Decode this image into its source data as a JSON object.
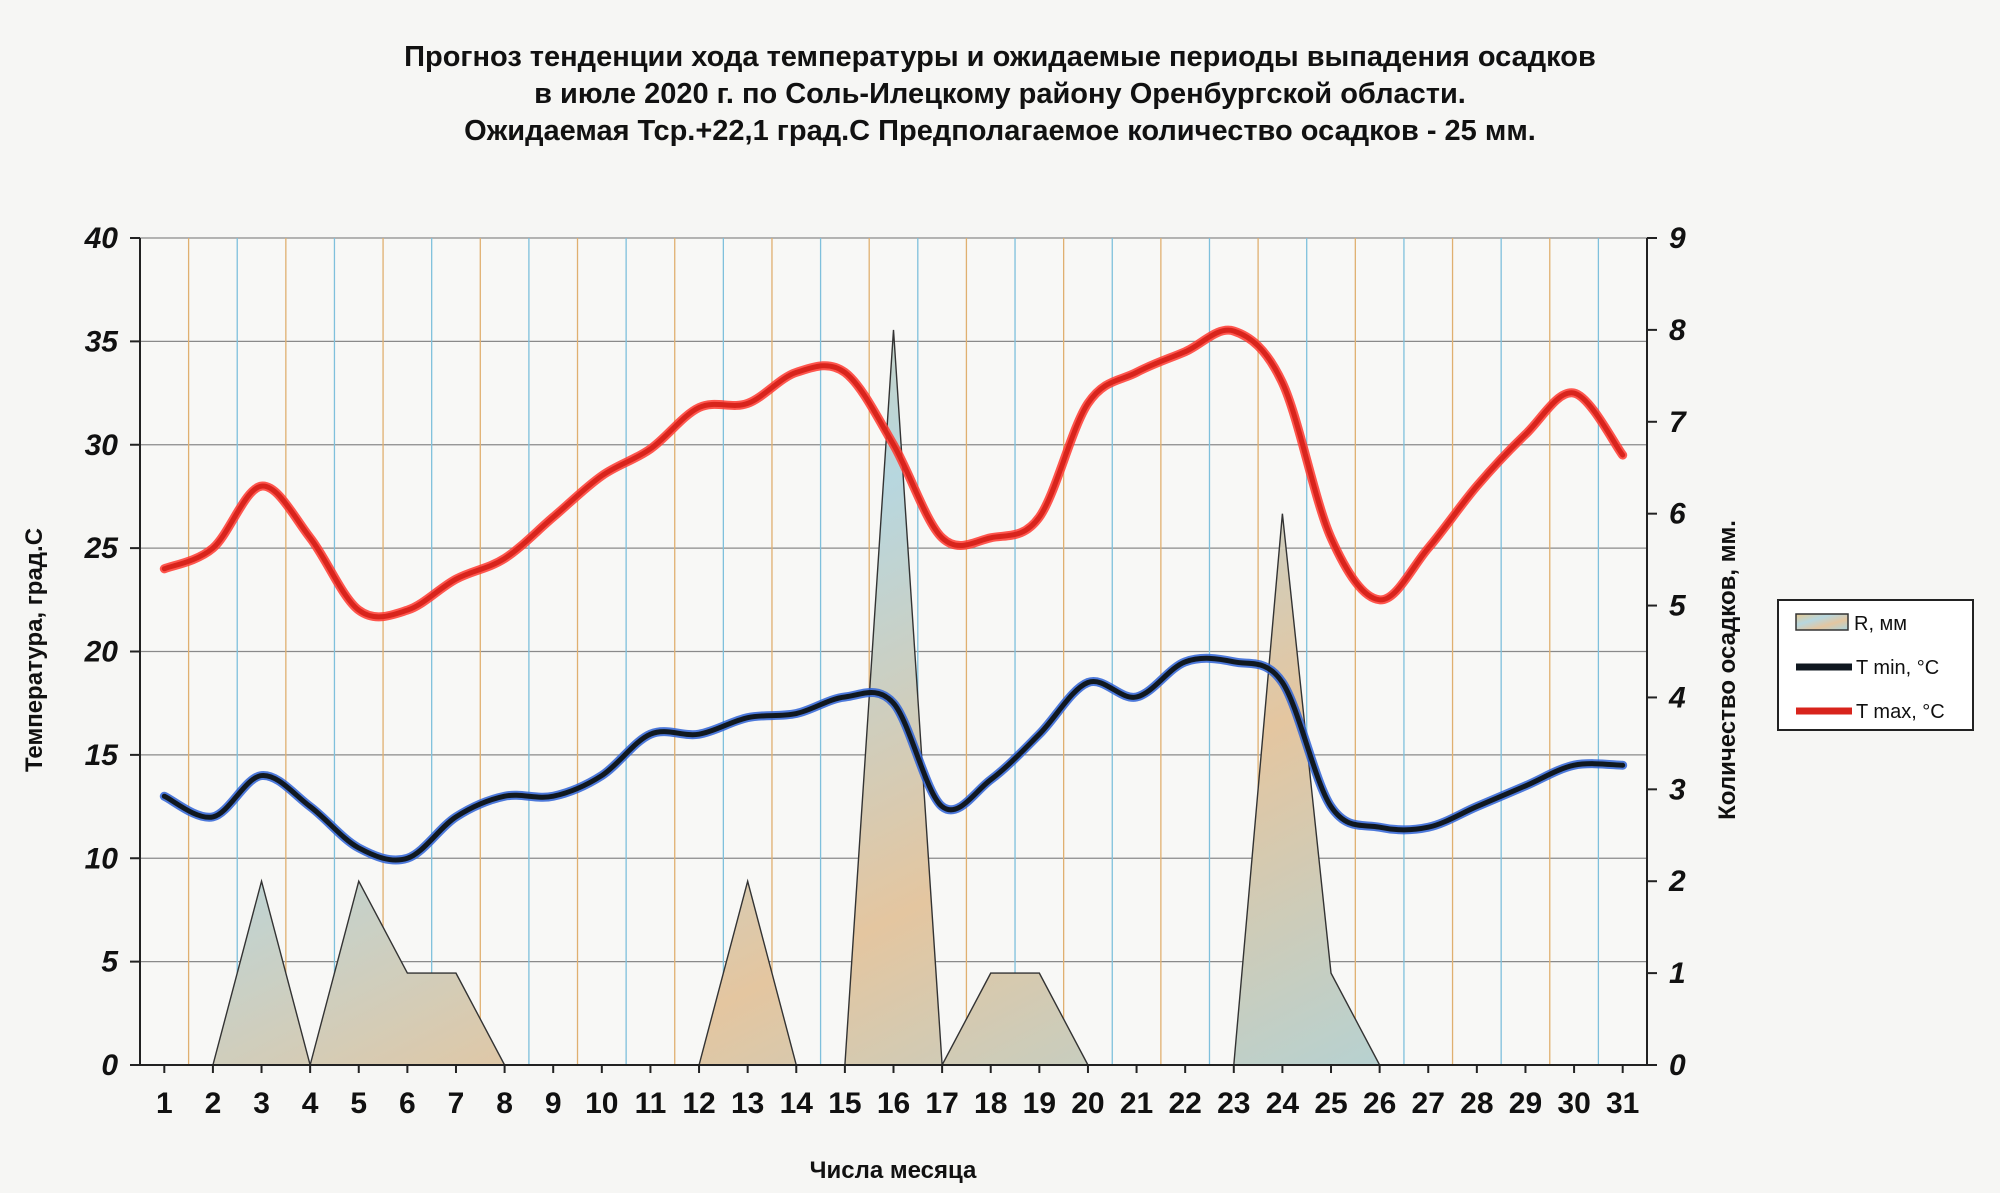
{
  "chart_data": {
    "type": "line",
    "title": [
      "Прогноз тенденции хода температуры и ожидаемые периоды выпадения осадков",
      "в июле 2020 г. по Соль-Илецкому району Оренбургской области.",
      "Ожидаемая Тср.+22,1 град.С Предполагаемое количество осадков - 25 мм."
    ],
    "xlabel": "Числа месяца",
    "ylabel_left": "Температура, град.С",
    "ylabel_right": "Количество осадков, мм.",
    "categories": [
      "1",
      "2",
      "3",
      "4",
      "5",
      "6",
      "7",
      "8",
      "9",
      "10",
      "11",
      "12",
      "13",
      "14",
      "15",
      "16",
      "17",
      "18",
      "19",
      "20",
      "21",
      "22",
      "23",
      "24",
      "25",
      "26",
      "27",
      "28",
      "29",
      "30",
      "31"
    ],
    "ylim_left": [
      0,
      40
    ],
    "yticks_left": [
      "0",
      "5",
      "10",
      "15",
      "20",
      "25",
      "30",
      "35",
      "40"
    ],
    "ylim_right": [
      0,
      9
    ],
    "yticks_right": [
      "0",
      "1",
      "2",
      "3",
      "4",
      "5",
      "6",
      "7",
      "8",
      "9"
    ],
    "grid": true,
    "legend_position": "right",
    "series": [
      {
        "name": "R, мм",
        "type": "area",
        "axis": "right",
        "color": "#d9c49a",
        "values": [
          0,
          0,
          2,
          0,
          2,
          1,
          1,
          0,
          0,
          0,
          0,
          0,
          2,
          0,
          0,
          8,
          0,
          1,
          1,
          0,
          0,
          0,
          0,
          6,
          1,
          0,
          0,
          0,
          0,
          0,
          0
        ]
      },
      {
        "name": "T min, °C",
        "type": "line",
        "axis": "left",
        "color": "#101820",
        "values": [
          13.0,
          12.0,
          14.0,
          12.5,
          10.5,
          10.0,
          12.0,
          13.0,
          13.0,
          14.0,
          16.0,
          16.0,
          16.8,
          17.0,
          17.8,
          17.5,
          12.5,
          13.8,
          16.0,
          18.5,
          17.8,
          19.5,
          19.5,
          18.5,
          12.5,
          11.5,
          11.5,
          12.5,
          13.5,
          14.5,
          14.5
        ]
      },
      {
        "name": "T max, °C",
        "type": "line",
        "axis": "left",
        "color": "#d8241c",
        "values": [
          24.0,
          25.0,
          28.0,
          25.5,
          22.0,
          22.0,
          23.5,
          24.5,
          26.5,
          28.5,
          29.8,
          31.8,
          32.0,
          33.5,
          33.5,
          30.0,
          25.5,
          25.5,
          26.5,
          32.0,
          33.5,
          34.5,
          35.5,
          33.0,
          25.5,
          22.5,
          25.0,
          28.0,
          30.5,
          32.5,
          29.5
        ]
      }
    ]
  }
}
